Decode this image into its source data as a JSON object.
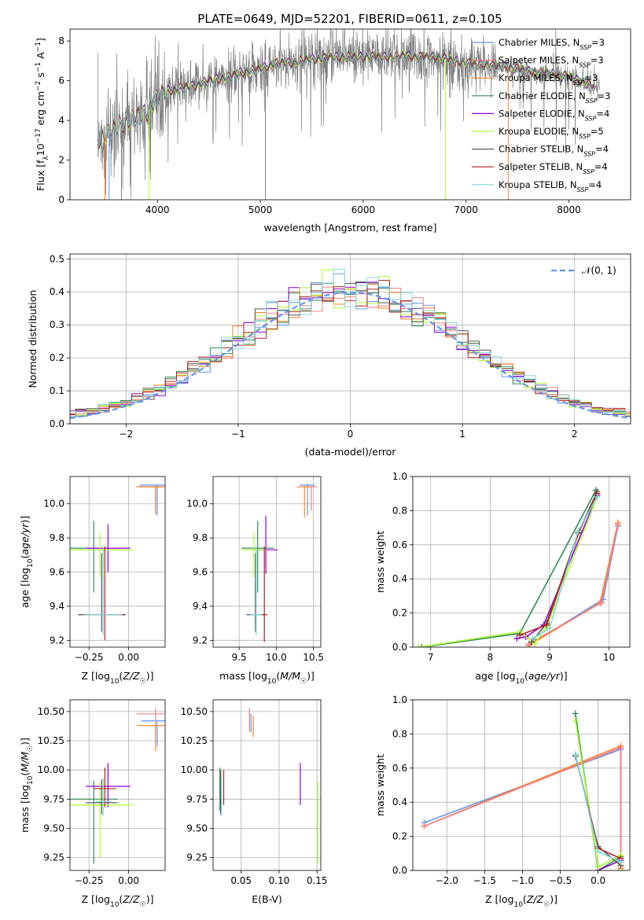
{
  "title": "PLATE=0649, MJD=52201, FIBERID=0611, z=0.105",
  "colors": {
    "chabrier_miles": "#6495ED",
    "salpeter_miles": "#F08080",
    "kroupa_miles": "#FF7F2A",
    "chabrier_elodie": "#2E8B57",
    "salpeter_elodie": "#9400D3",
    "kroupa_elodie": "#ADFF2F",
    "chabrier_stelib": "#555555",
    "salpeter_stelib": "#B22222",
    "kroupa_stelib": "#7FDBDB",
    "data": "#808080",
    "normal_curve": "#6495ED",
    "grid": "#b0b0b0"
  },
  "chart_data": [
    {
      "id": "spectrum",
      "type": "line",
      "xlabel": "wavelength [Angstrom, rest frame]",
      "ylabel": "Flux [fλ10⁻¹⁷ erg cm⁻² s⁻¹ A⁻¹]",
      "xlim": [
        3150,
        8600
      ],
      "ylim": [
        0,
        8.6
      ],
      "xticks": [
        4000,
        5000,
        6000,
        7000,
        8000
      ],
      "yticks": [
        0,
        2,
        4,
        6,
        8
      ],
      "grid": false,
      "legend_position": "right",
      "legend": [
        {
          "label": "Chabrier MILES, N",
          "sub": "SSP",
          "tail": "=3",
          "color": "chabrier_miles"
        },
        {
          "label": "Salpeter MILES, N",
          "sub": "SSP",
          "tail": "=3",
          "color": "salpeter_miles"
        },
        {
          "label": "Kroupa MILES, N",
          "sub": "SSP",
          "tail": "=3",
          "color": "kroupa_miles"
        },
        {
          "label": "Chabrier ELODIE, N",
          "sub": "SSP",
          "tail": "=3",
          "color": "chabrier_elodie"
        },
        {
          "label": "Salpeter ELODIE, N",
          "sub": "SSP",
          "tail": "=4",
          "color": "salpeter_elodie"
        },
        {
          "label": "Kroupa ELODIE, N",
          "sub": "SSP",
          "tail": "=5",
          "color": "kroupa_elodie"
        },
        {
          "label": "Chabrier STELIB, N",
          "sub": "SSP",
          "tail": "=4",
          "color": "chabrier_stelib"
        },
        {
          "label": "Salpeter STELIB, N",
          "sub": "SSP",
          "tail": "=4",
          "color": "salpeter_stelib"
        },
        {
          "label": "Kroupa STELIB, N",
          "sub": "SSP",
          "tail": "=4",
          "color": "kroupa_stelib"
        }
      ],
      "continuum": [
        [
          3420,
          3.0
        ],
        [
          3500,
          3.3
        ],
        [
          3600,
          3.6
        ],
        [
          3700,
          3.9
        ],
        [
          3800,
          4.2
        ],
        [
          3900,
          4.4
        ],
        [
          4000,
          5.2
        ],
        [
          4100,
          5.5
        ],
        [
          4200,
          5.6
        ],
        [
          4300,
          5.7
        ],
        [
          4400,
          5.8
        ],
        [
          4500,
          6.0
        ],
        [
          4600,
          6.1
        ],
        [
          4700,
          6.2
        ],
        [
          4800,
          6.4
        ],
        [
          4900,
          6.5
        ],
        [
          5000,
          6.6
        ],
        [
          5100,
          6.8
        ],
        [
          5200,
          6.9
        ],
        [
          5300,
          6.9
        ],
        [
          5400,
          7.0
        ],
        [
          5500,
          7.1
        ],
        [
          5600,
          7.1
        ],
        [
          5700,
          7.2
        ],
        [
          5800,
          7.2
        ],
        [
          5900,
          7.2
        ],
        [
          6000,
          7.2
        ],
        [
          6100,
          7.2
        ],
        [
          6200,
          7.2
        ],
        [
          6300,
          7.2
        ],
        [
          6400,
          7.3
        ],
        [
          6500,
          7.2
        ],
        [
          6600,
          7.2
        ],
        [
          6700,
          7.2
        ],
        [
          6800,
          7.1
        ],
        [
          6900,
          7.0
        ],
        [
          7000,
          6.9
        ],
        [
          7100,
          6.8
        ],
        [
          7200,
          6.8
        ],
        [
          7300,
          6.7
        ],
        [
          7400,
          6.7
        ],
        [
          7500,
          6.6
        ],
        [
          7600,
          6.5
        ],
        [
          7700,
          6.4
        ],
        [
          7800,
          6.4
        ],
        [
          7900,
          6.3
        ],
        [
          8000,
          6.2
        ],
        [
          8100,
          6.0
        ],
        [
          8200,
          5.8
        ],
        [
          8300,
          5.6
        ]
      ],
      "noise_amplitude": 1.8
    },
    {
      "id": "residuals",
      "type": "line",
      "xlabel": "(data-model)/error",
      "ylabel": "Normed distribution",
      "xlim": [
        -2.5,
        2.5
      ],
      "ylim": [
        0,
        0.515
      ],
      "xticks": [
        -2,
        -1,
        0,
        1,
        2
      ],
      "yticks": [
        0.0,
        0.1,
        0.2,
        0.3,
        0.4,
        0.5
      ],
      "grid": true,
      "legend_position": "top-right",
      "normal_label": "𝒩(0, 1)",
      "bin_width": 0.1
    },
    {
      "id": "age_vs_z",
      "type": "scatter",
      "xlabel": "Z [log10(Z/Z☉)]",
      "ylabel": "age  [log10(age/yr)]",
      "xlim": [
        -0.37,
        0.23
      ],
      "ylim": [
        9.16,
        10.16
      ],
      "xticks": [
        -0.25,
        0.0
      ],
      "yticks": [
        9.2,
        9.4,
        9.6,
        9.8,
        10.0
      ],
      "grid": true,
      "points": [
        {
          "color": "chabrier_miles",
          "x": 0.18,
          "xerr": 0.11,
          "y": 10.11,
          "yerr": [
            0.18,
            0.0
          ]
        },
        {
          "color": "salpeter_miles",
          "x": 0.17,
          "xerr": 0.12,
          "y": 10.1,
          "yerr": [
            0.16,
            0.0
          ]
        },
        {
          "color": "kroupa_miles",
          "x": 0.17,
          "xerr": 0.12,
          "y": 10.1,
          "yerr": [
            0.16,
            0.0
          ]
        },
        {
          "color": "chabrier_elodie",
          "x": -0.22,
          "xerr": 0.15,
          "y": 9.74,
          "yerr": [
            0.26,
            0.16
          ]
        },
        {
          "color": "salpeter_elodie",
          "x": -0.13,
          "xerr": 0.14,
          "y": 9.74,
          "yerr": [
            0.14,
            0.14
          ]
        },
        {
          "color": "kroupa_elodie",
          "x": -0.18,
          "xerr": 0.21,
          "y": 9.73,
          "yerr": [
            0.16,
            0.1
          ]
        },
        {
          "color": "chabrier_stelib",
          "x": -0.17,
          "xerr": 0.15,
          "y": 9.35,
          "yerr": [
            0.1,
            0.36
          ]
        },
        {
          "color": "salpeter_stelib",
          "x": -0.15,
          "xerr": 0.13,
          "y": 9.35,
          "yerr": [
            0.15,
            0.4
          ]
        },
        {
          "color": "kroupa_stelib",
          "x": -0.16,
          "xerr": 0.12,
          "y": 9.35,
          "yerr": [
            0.12,
            0.4
          ]
        }
      ]
    },
    {
      "id": "age_vs_mass",
      "type": "scatter",
      "xlabel": "mass [log10(M/M☉)]",
      "ylabel": "",
      "xlim": [
        9.15,
        10.6
      ],
      "ylim": [
        9.16,
        10.16
      ],
      "xticks": [
        9.5,
        10.0,
        10.5
      ],
      "yticks": [
        9.2,
        9.4,
        9.6,
        9.8,
        10.0
      ],
      "grid": true,
      "points": [
        {
          "color": "chabrier_miles",
          "x": 10.42,
          "xerr": 0.1,
          "y": 10.11,
          "yerr": [
            0.18,
            0.0
          ]
        },
        {
          "color": "salpeter_miles",
          "x": 10.47,
          "xerr": 0.08,
          "y": 10.1,
          "yerr": [
            0.14,
            0.0
          ]
        },
        {
          "color": "kroupa_miles",
          "x": 10.38,
          "xerr": 0.1,
          "y": 10.1,
          "yerr": [
            0.18,
            0.0
          ]
        },
        {
          "color": "chabrier_elodie",
          "x": 9.75,
          "xerr": 0.22,
          "y": 9.74,
          "yerr": [
            0.26,
            0.16
          ]
        },
        {
          "color": "salpeter_elodie",
          "x": 9.86,
          "xerr": 0.16,
          "y": 9.73,
          "yerr": [
            0.14,
            0.2
          ]
        },
        {
          "color": "kroupa_elodie",
          "x": 9.7,
          "xerr": 0.16,
          "y": 9.73,
          "yerr": [
            0.16,
            0.1
          ]
        },
        {
          "color": "chabrier_stelib",
          "x": 9.72,
          "xerr": 0.12,
          "y": 9.35,
          "yerr": [
            0.1,
            0.36
          ]
        },
        {
          "color": "salpeter_stelib",
          "x": 9.84,
          "xerr": 0.04,
          "y": 9.35,
          "yerr": [
            0.16,
            0.4
          ]
        },
        {
          "color": "kroupa_stelib",
          "x": 9.73,
          "xerr": 0.08,
          "y": 9.35,
          "yerr": [
            0.12,
            0.4
          ]
        }
      ]
    },
    {
      "id": "mass_weight_vs_age",
      "type": "line",
      "xlabel": "age  [log10(age/yr)]",
      "ylabel": "mass weight",
      "xlim": [
        6.7,
        10.35
      ],
      "ylim": [
        0,
        1.0
      ],
      "xticks": [
        7,
        8,
        9,
        10
      ],
      "yticks": [
        0.0,
        0.2,
        0.4,
        0.6,
        0.8,
        1.0
      ],
      "grid": true,
      "series": [
        {
          "color": "chabrier_miles",
          "x": [
            8.65,
            9.9,
            10.15
          ],
          "y": [
            0.01,
            0.28,
            0.71
          ]
        },
        {
          "color": "kroupa_miles",
          "x": [
            8.65,
            9.85,
            10.15
          ],
          "y": [
            0.01,
            0.26,
            0.73
          ]
        },
        {
          "color": "salpeter_miles",
          "x": [
            8.65,
            9.87,
            10.15
          ],
          "y": [
            0.02,
            0.26,
            0.72
          ]
        },
        {
          "color": "chabrier_elodie",
          "x": [
            6.85,
            8.5,
            9.78
          ],
          "y": [
            0.0,
            0.08,
            0.92
          ]
        },
        {
          "color": "salpeter_elodie",
          "x": [
            8.45,
            8.6,
            8.9,
            9.8
          ],
          "y": [
            0.05,
            0.06,
            0.13,
            0.89
          ]
        },
        {
          "color": "kroupa_elodie",
          "x": [
            6.8,
            8.5,
            8.75,
            8.95,
            9.8
          ],
          "y": [
            0.0,
            0.09,
            0.02,
            0.12,
            0.88
          ]
        },
        {
          "color": "chabrier_stelib",
          "x": [
            8.7,
            8.95,
            9.48,
            9.8
          ],
          "y": [
            0.03,
            0.14,
            0.67,
            0.91
          ]
        },
        {
          "color": "salpeter_stelib",
          "x": [
            8.5,
            8.95,
            9.5,
            9.8
          ],
          "y": [
            0.07,
            0.13,
            0.68,
            0.9
          ]
        },
        {
          "color": "kroupa_stelib",
          "x": [
            8.72,
            9.0,
            9.48,
            9.8
          ],
          "y": [
            0.05,
            0.11,
            0.68,
            0.88
          ]
        }
      ]
    },
    {
      "id": "mass_vs_z",
      "type": "scatter",
      "xlabel": "Z [log10(Z/Z☉)]",
      "ylabel": "mass [log10(M/M☉)]",
      "xlim": [
        -0.37,
        0.23
      ],
      "ylim": [
        9.14,
        10.6
      ],
      "xticks": [
        -0.25,
        0.0
      ],
      "yticks": [
        9.25,
        9.5,
        9.75,
        10.0,
        10.25,
        10.5
      ],
      "grid": true,
      "points": [
        {
          "color": "chabrier_miles",
          "x": 0.18,
          "xerr": 0.1,
          "y": 10.42,
          "yerr": [
            0.22,
            0.0
          ]
        },
        {
          "color": "salpeter_miles",
          "x": 0.17,
          "xerr": 0.12,
          "y": 10.48,
          "yerr": [
            0.16,
            0.05
          ]
        },
        {
          "color": "kroupa_miles",
          "x": 0.17,
          "xerr": 0.12,
          "y": 10.38,
          "yerr": [
            0.22,
            0.0
          ]
        },
        {
          "color": "chabrier_elodie",
          "x": -0.22,
          "xerr": 0.15,
          "y": 9.75,
          "yerr": [
            0.55,
            0.16
          ]
        },
        {
          "color": "salpeter_elodie",
          "x": -0.13,
          "xerr": 0.14,
          "y": 9.86,
          "yerr": [
            0.18,
            0.2
          ]
        },
        {
          "color": "kroupa_elodie",
          "x": -0.18,
          "xerr": 0.21,
          "y": 9.7,
          "yerr": [
            0.45,
            0.2
          ]
        },
        {
          "color": "chabrier_stelib",
          "x": -0.17,
          "xerr": 0.1,
          "y": 9.72,
          "yerr": [
            0.1,
            0.2
          ]
        },
        {
          "color": "salpeter_stelib",
          "x": -0.15,
          "xerr": 0.07,
          "y": 9.84,
          "yerr": [
            0.16,
            0.18
          ]
        },
        {
          "color": "kroupa_stelib",
          "x": -0.16,
          "xerr": 0.05,
          "y": 9.73,
          "yerr": [
            0.12,
            0.2
          ]
        }
      ]
    },
    {
      "id": "mass_vs_ebv",
      "type": "scatter",
      "xlabel": "E(B-V)",
      "ylabel": "",
      "xlim": [
        0.013,
        0.155
      ],
      "ylim": [
        9.14,
        10.6
      ],
      "xticks": [
        0.05,
        0.1,
        0.15
      ],
      "yticks": [
        9.25,
        9.5,
        9.75,
        10.0,
        10.25,
        10.5
      ],
      "grid": true,
      "points": [
        {
          "color": "chabrier_miles",
          "x": 0.063,
          "y": 10.42,
          "yerr": [
            0.1,
            0.06
          ]
        },
        {
          "color": "salpeter_miles",
          "x": 0.061,
          "y": 10.45,
          "yerr": [
            0.12,
            0.08
          ]
        },
        {
          "color": "kroupa_miles",
          "x": 0.066,
          "y": 10.38,
          "yerr": [
            0.1,
            0.08
          ]
        },
        {
          "color": "chabrier_elodie",
          "x": 0.022,
          "y": 9.75,
          "yerr": [
            0.1,
            0.27
          ]
        },
        {
          "color": "salpeter_elodie",
          "x": 0.128,
          "y": 9.86,
          "yerr": [
            0.16,
            0.2
          ]
        },
        {
          "color": "kroupa_elodie",
          "x": 0.151,
          "y": 9.7,
          "yerr": [
            0.5,
            0.2
          ]
        },
        {
          "color": "chabrier_stelib",
          "x": 0.023,
          "y": 9.72,
          "yerr": [
            0.1,
            0.28
          ]
        },
        {
          "color": "salpeter_stelib",
          "x": 0.027,
          "y": 9.84,
          "yerr": [
            0.14,
            0.16
          ]
        },
        {
          "color": "kroupa_stelib",
          "x": 0.024,
          "y": 9.73,
          "yerr": [
            0.12,
            0.2
          ]
        }
      ]
    },
    {
      "id": "mass_weight_vs_z",
      "type": "line",
      "xlabel": "Z [log10(Z/Z☉)]",
      "ylabel": "mass weight",
      "xlim": [
        -2.45,
        0.42
      ],
      "ylim": [
        0,
        1.0
      ],
      "xticks": [
        -2.0,
        -1.5,
        -1.0,
        -0.5,
        0.0
      ],
      "yticks": [
        0.0,
        0.2,
        0.4,
        0.6,
        0.8,
        1.0
      ],
      "grid": true,
      "series": [
        {
          "color": "chabrier_miles",
          "x": [
            -2.3,
            0.3,
            0.3,
            0.3
          ],
          "y": [
            0.28,
            0.71,
            0.01,
            0.0
          ]
        },
        {
          "color": "kroupa_miles",
          "x": [
            -2.3,
            0.3,
            0.3,
            0.3
          ],
          "y": [
            0.26,
            0.73,
            0.01,
            0.0
          ]
        },
        {
          "color": "salpeter_miles",
          "x": [
            -2.3,
            0.3,
            0.3
          ],
          "y": [
            0.26,
            0.72,
            0.02
          ]
        },
        {
          "color": "chabrier_elodie",
          "x": [
            -0.3,
            0.0,
            0.3
          ],
          "y": [
            0.92,
            0.0,
            0.08
          ]
        },
        {
          "color": "salpeter_elodie",
          "x": [
            0.0,
            0.3,
            0.3
          ],
          "y": [
            0.0,
            0.06,
            0.05
          ]
        },
        {
          "color": "kroupa_elodie",
          "x": [
            -0.3,
            0.0,
            0.3,
            0.3
          ],
          "y": [
            0.88,
            0.02,
            0.09,
            0.0
          ]
        },
        {
          "color": "chabrier_stelib",
          "x": [
            -0.3,
            0.0,
            0.3
          ],
          "y": [
            0.67,
            0.14,
            0.03
          ]
        },
        {
          "color": "salpeter_stelib",
          "x": [
            -0.3,
            0.0,
            0.3
          ],
          "y": [
            0.68,
            0.13,
            0.07
          ]
        },
        {
          "color": "kroupa_stelib",
          "x": [
            -0.3,
            0.0,
            0.3
          ],
          "y": [
            0.68,
            0.11,
            0.05
          ]
        }
      ]
    }
  ]
}
